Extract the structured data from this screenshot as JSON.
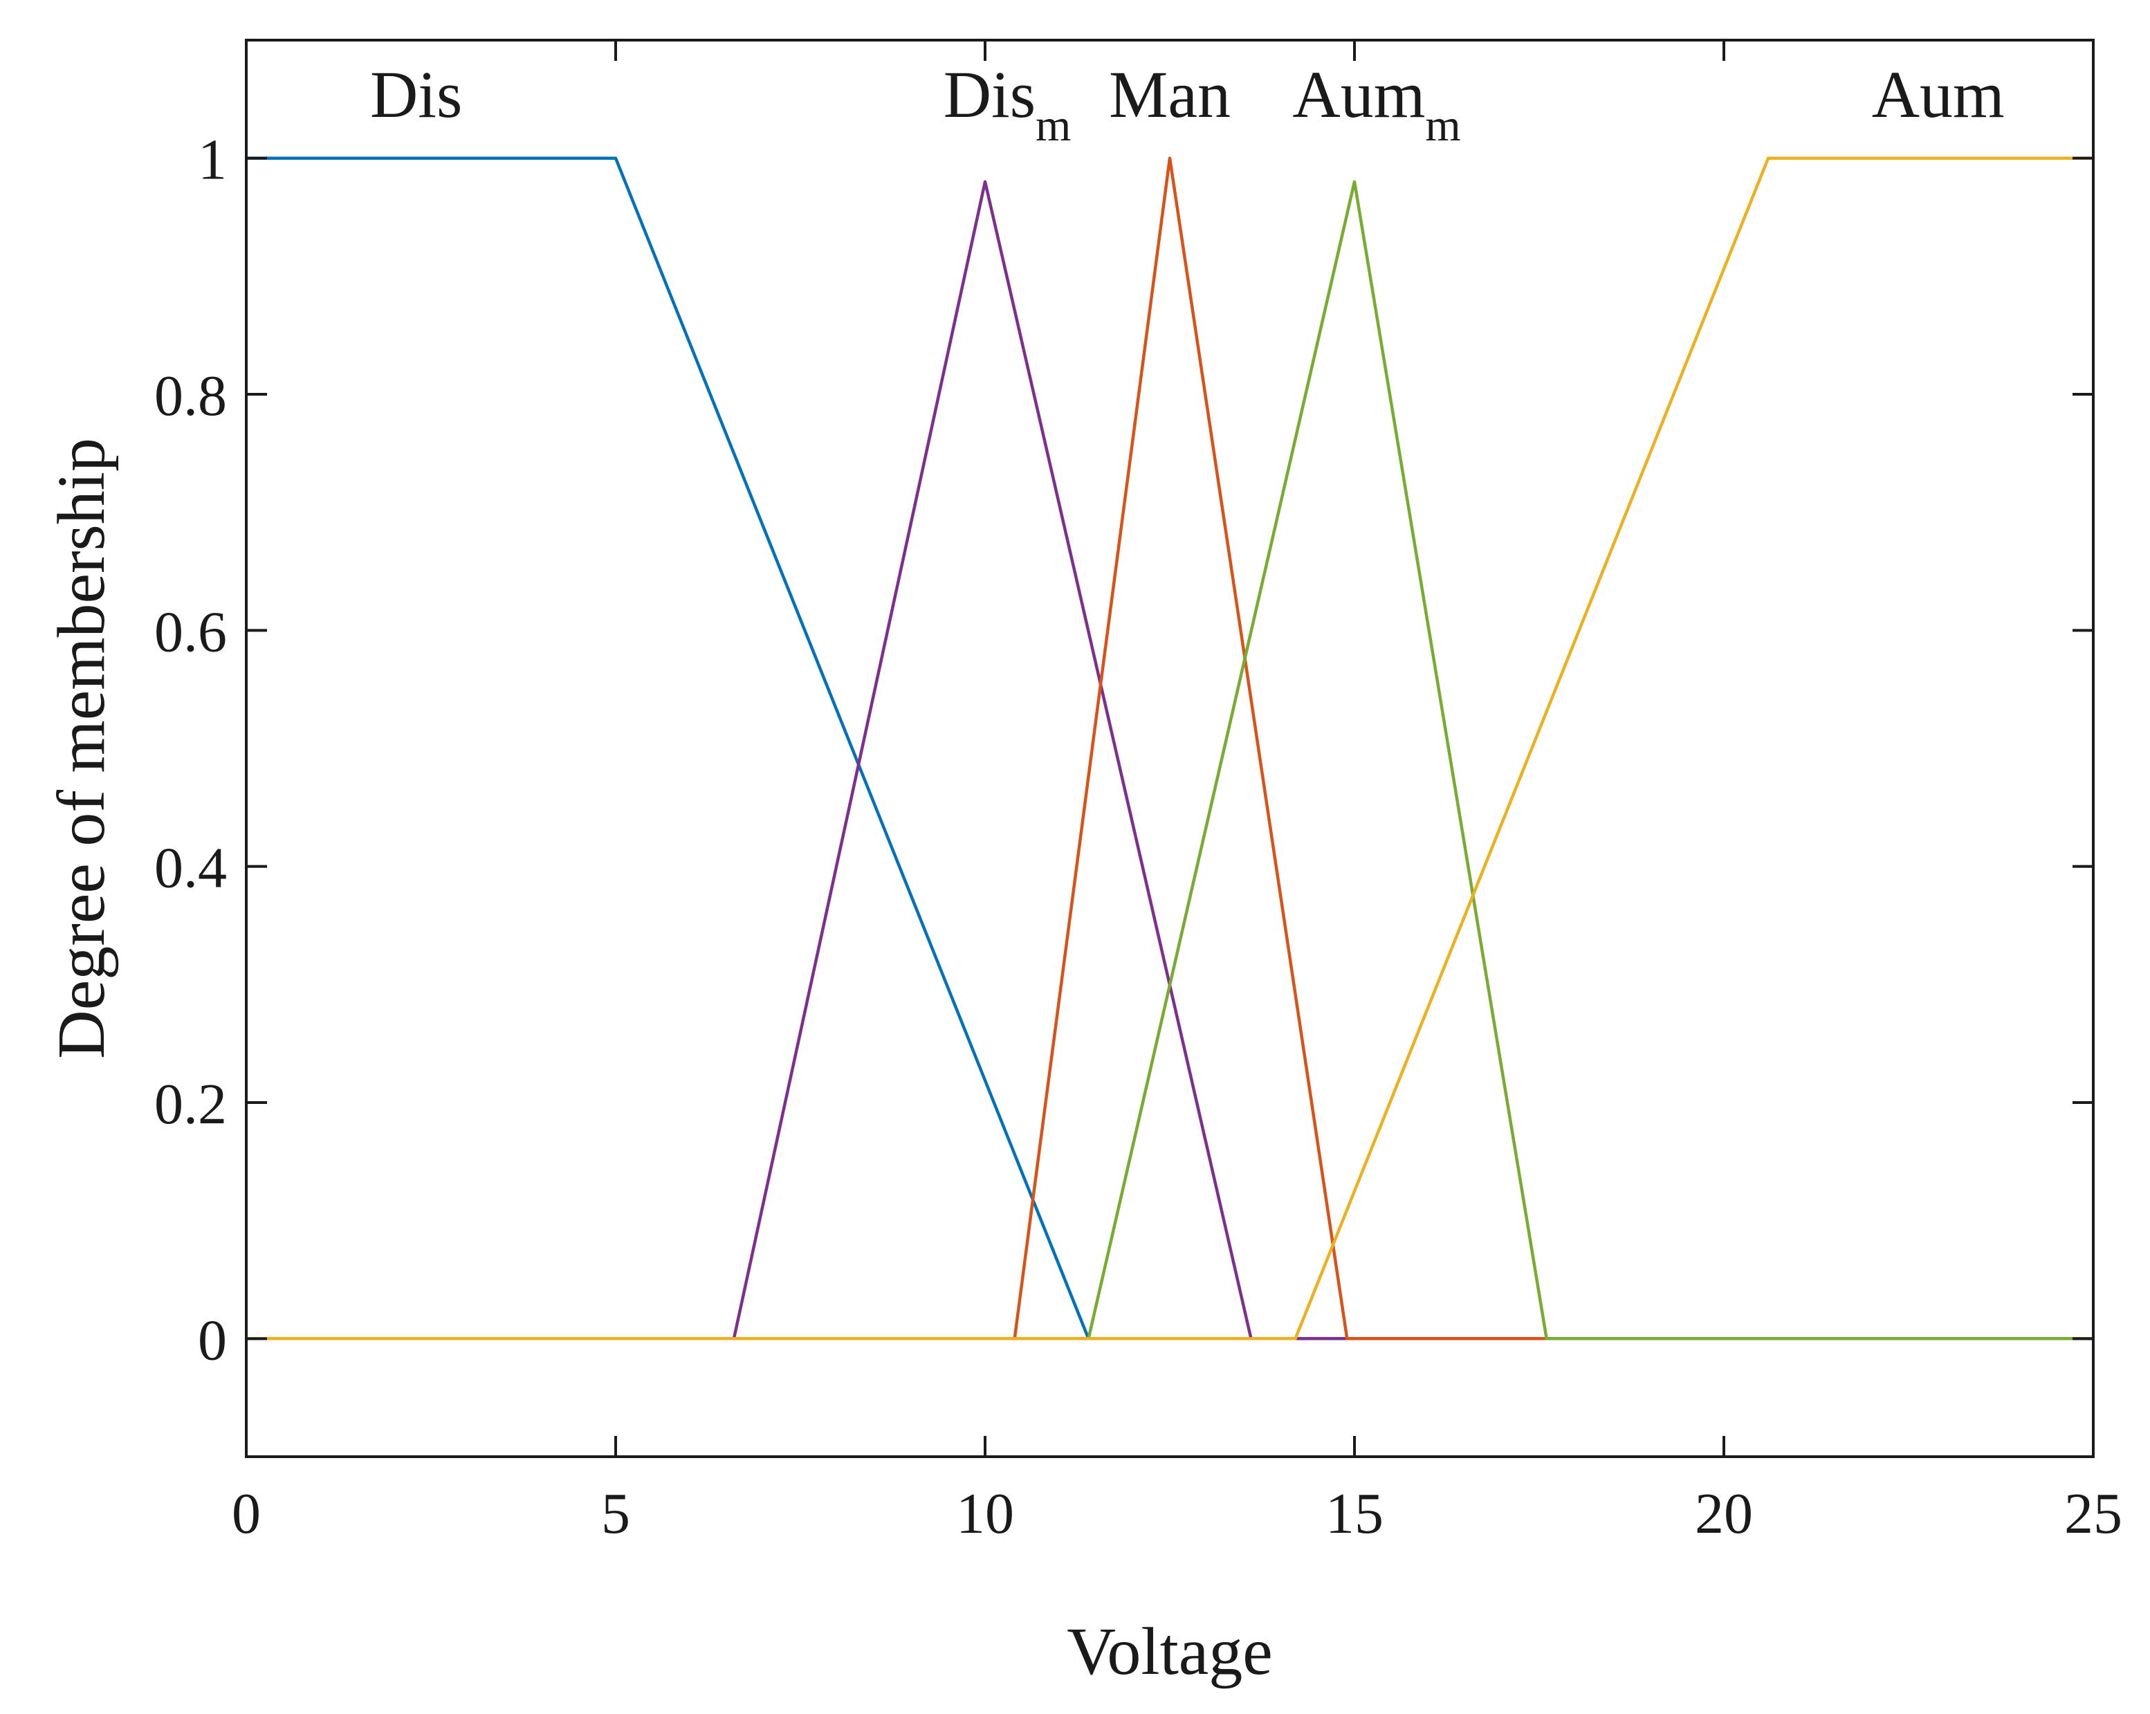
{
  "chart_data": {
    "type": "line",
    "title": "",
    "xlabel": "Voltage",
    "ylabel": "Degree of membership",
    "xlim": [
      0,
      25
    ],
    "ylim": [
      -0.1,
      1.1
    ],
    "xticks": [
      0,
      5,
      10,
      15,
      20,
      25
    ],
    "yticks": [
      0,
      0.2,
      0.4,
      0.6,
      0.8,
      1
    ],
    "xtick_labels": [
      "0",
      "5",
      "10",
      "15",
      "20",
      "25"
    ],
    "ytick_labels": [
      "0",
      "0.2",
      "0.4",
      "0.6",
      "0.8",
      "1"
    ],
    "grid": false,
    "series": [
      {
        "name": "Dis",
        "label_main": "Dis",
        "label_sub": "",
        "label_at": [
          2.3,
          1.035
        ],
        "color": "#0072BD",
        "x": [
          0,
          5,
          11.4,
          25
        ],
        "y": [
          1,
          1,
          0,
          0
        ]
      },
      {
        "name": "Dis_m",
        "label_main": "Dis",
        "label_sub": "m",
        "label_at": [
          10.3,
          1.035
        ],
        "color": "#7E2F8E",
        "x": [
          0,
          6.6,
          10,
          13.6,
          25
        ],
        "y": [
          0,
          0,
          0.98,
          0,
          0
        ]
      },
      {
        "name": "Man",
        "label_main": "Man",
        "label_sub": "",
        "label_at": [
          12.5,
          1.035
        ],
        "color": "#D95319",
        "x": [
          0,
          10.4,
          12.5,
          14.9,
          25
        ],
        "y": [
          0,
          0,
          1,
          0,
          0
        ]
      },
      {
        "name": "Aum_m",
        "label_main": "Aum",
        "label_sub": "m",
        "label_at": [
          15.3,
          1.035
        ],
        "color": "#77AC30",
        "x": [
          0,
          11.4,
          15,
          17.6,
          25
        ],
        "y": [
          0,
          0,
          0.98,
          0,
          0
        ]
      },
      {
        "name": "Aum",
        "label_main": "Aum",
        "label_sub": "",
        "label_at": [
          22.9,
          1.035
        ],
        "color": "#EDB120",
        "x": [
          0,
          14.2,
          20.6,
          25
        ],
        "y": [
          0,
          0,
          1,
          1
        ]
      }
    ]
  }
}
